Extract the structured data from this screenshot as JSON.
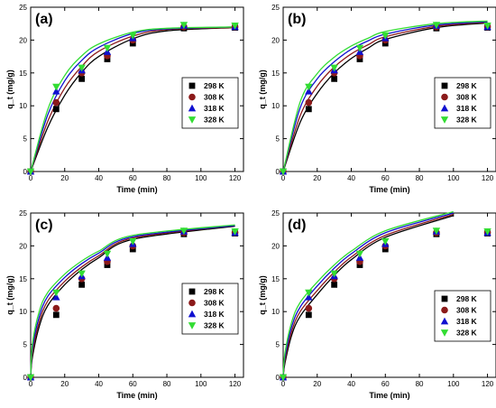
{
  "colors": {
    "298 K": "#000000",
    "308 K": "#8b1a1a",
    "318 K": "#1010d0",
    "328 K": "#33dd33"
  },
  "markers": {
    "298 K": "square",
    "308 K": "circle",
    "318 K": "triangle-up",
    "328 K": "triangle-down"
  },
  "chart_data": [
    {
      "panel_label": "(a)",
      "type": "scatter",
      "xlabel": "Time (min)",
      "ylabel": "q_t (mg/g)",
      "xlim": [
        0,
        125
      ],
      "ylim": [
        0,
        25
      ],
      "xticks": [
        0,
        20,
        40,
        60,
        80,
        100,
        120
      ],
      "yticks": [
        0,
        5,
        10,
        15,
        20,
        25
      ],
      "legend": [
        "298 K",
        "308 K",
        "318 K",
        "328 K"
      ],
      "legend_position": "center-right",
      "series": [
        {
          "name": "298 K",
          "x": [
            0,
            15,
            30,
            45,
            60,
            90,
            120
          ],
          "y": [
            0,
            9.5,
            14.1,
            17.1,
            19.5,
            21.8,
            21.9
          ],
          "fit": [
            0,
            6.7,
            11.6,
            15.1,
            17.5,
            20.2,
            21.4,
            21.9
          ]
        },
        {
          "name": "308 K",
          "x": [
            0,
            15,
            30,
            45,
            60,
            90,
            120
          ],
          "y": [
            0,
            10.5,
            15.0,
            17.6,
            20.0,
            22.0,
            22.0
          ],
          "fit": [
            0,
            7.6,
            12.7,
            16.0,
            18.3,
            20.6,
            21.6,
            21.9
          ]
        },
        {
          "name": "318 K",
          "x": [
            0,
            15,
            30,
            45,
            60,
            90,
            120
          ],
          "y": [
            0,
            12.2,
            15.4,
            18.2,
            20.3,
            22.2,
            22.0
          ],
          "fit": [
            0,
            8.6,
            13.8,
            16.9,
            18.9,
            21.0,
            21.7,
            22.0
          ]
        },
        {
          "name": "328 K",
          "x": [
            0,
            15,
            30,
            45,
            60,
            90,
            120
          ],
          "y": [
            0,
            12.9,
            15.8,
            18.8,
            20.7,
            22.3,
            22.2
          ],
          "fit": [
            0,
            9.4,
            14.6,
            17.6,
            19.4,
            21.2,
            21.8,
            22.0
          ]
        }
      ],
      "fit_x": [
        0,
        10,
        20,
        30,
        40,
        60,
        80,
        120
      ]
    },
    {
      "panel_label": "(b)",
      "type": "scatter",
      "xlabel": "Time (min)",
      "ylabel": "q_t (mg/g)",
      "xlim": [
        0,
        125
      ],
      "ylim": [
        0,
        25
      ],
      "xticks": [
        0,
        20,
        40,
        60,
        80,
        100,
        120
      ],
      "yticks": [
        0,
        5,
        10,
        15,
        20,
        25
      ],
      "legend": [
        "298 K",
        "308 K",
        "318 K",
        "328 K"
      ],
      "legend_position": "center-right",
      "series": [
        {
          "name": "298 K",
          "x": [
            0,
            15,
            30,
            45,
            60,
            90,
            120
          ],
          "y": [
            0,
            9.5,
            14.1,
            17.1,
            19.5,
            21.8,
            21.9
          ],
          "fit": [
            0,
            7.5,
            11.9,
            15.0,
            17.2,
            18.8,
            20.1,
            21.9,
            22.6
          ]
        },
        {
          "name": "308 K",
          "x": [
            0,
            15,
            30,
            45,
            60,
            90,
            120
          ],
          "y": [
            0,
            10.5,
            15.0,
            17.6,
            20.0,
            22.0,
            22.0
          ],
          "fit": [
            0,
            8.5,
            13.0,
            15.9,
            17.9,
            19.3,
            20.5,
            22.1,
            22.7
          ]
        },
        {
          "name": "318 K",
          "x": [
            0,
            15,
            30,
            45,
            60,
            90,
            120
          ],
          "y": [
            0,
            12.2,
            15.4,
            18.2,
            20.3,
            22.2,
            22.0
          ],
          "fit": [
            0,
            9.7,
            14.1,
            16.7,
            18.6,
            19.9,
            20.9,
            22.3,
            22.8
          ]
        },
        {
          "name": "328 K",
          "x": [
            0,
            15,
            30,
            45,
            60,
            90,
            120
          ],
          "y": [
            0,
            12.9,
            15.8,
            18.8,
            20.7,
            22.3,
            22.2
          ],
          "fit": [
            0,
            10.6,
            14.9,
            17.4,
            19.1,
            20.3,
            21.3,
            22.5,
            22.9
          ]
        }
      ],
      "fit_x": [
        0,
        10,
        20,
        30,
        40,
        50,
        60,
        90,
        120
      ]
    },
    {
      "panel_label": "(c)",
      "type": "scatter",
      "xlabel": "Time (min)",
      "ylabel": "q_t (mg/g)",
      "xlim": [
        0,
        125
      ],
      "ylim": [
        0,
        25
      ],
      "xticks": [
        0,
        20,
        40,
        60,
        80,
        100,
        120
      ],
      "yticks": [
        0,
        5,
        10,
        15,
        20,
        25
      ],
      "legend": [
        "298 K",
        "308 K",
        "318 K",
        "328 K"
      ],
      "legend_position": "center-right",
      "series": [
        {
          "name": "298 K",
          "x": [
            0,
            15,
            30,
            45,
            60,
            90,
            120
          ],
          "y": [
            0,
            9.5,
            14.1,
            17.1,
            19.5,
            21.8,
            21.9
          ],
          "fit": [
            0,
            3.0,
            7.7,
            10.9,
            14.1,
            16.4,
            18.2,
            21.0,
            23.0
          ]
        },
        {
          "name": "308 K",
          "x": [
            0,
            15,
            30,
            45,
            60,
            90,
            120
          ],
          "y": [
            0,
            10.5,
            15.0,
            17.6,
            20.0,
            22.0,
            22.0
          ],
          "fit": [
            0,
            3.6,
            8.4,
            11.6,
            14.6,
            16.8,
            18.5,
            21.2,
            23.1
          ]
        },
        {
          "name": "318 K",
          "x": [
            0,
            15,
            30,
            45,
            60,
            90,
            120
          ],
          "y": [
            0,
            12.2,
            15.4,
            18.2,
            20.3,
            22.2,
            22.0
          ],
          "fit": [
            0,
            4.3,
            9.2,
            12.3,
            15.2,
            17.3,
            18.9,
            21.4,
            23.1
          ]
        },
        {
          "name": "328 K",
          "x": [
            0,
            15,
            30,
            45,
            60,
            90,
            120
          ],
          "y": [
            0,
            12.9,
            15.8,
            18.8,
            20.7,
            22.3,
            22.2
          ],
          "fit": [
            0,
            5.0,
            10.0,
            12.9,
            15.7,
            17.7,
            19.2,
            21.6,
            23.2
          ]
        }
      ],
      "fit_x": [
        0,
        1,
        5,
        10,
        20,
        30,
        40,
        60,
        120
      ]
    },
    {
      "panel_label": "(d)",
      "type": "scatter",
      "xlabel": "Time (min)",
      "ylabel": "q_t (mg/g)",
      "xlim": [
        0,
        125
      ],
      "ylim": [
        0,
        25
      ],
      "xticks": [
        0,
        20,
        40,
        60,
        80,
        100,
        120
      ],
      "yticks": [
        0,
        5,
        10,
        15,
        20,
        25
      ],
      "legend": [
        "298 K",
        "308 K",
        "318 K",
        "328 K"
      ],
      "legend_position": "bottom-right",
      "series": [
        {
          "name": "298 K",
          "x": [
            0,
            15,
            30,
            45,
            60,
            90,
            120
          ],
          "y": [
            0,
            9.5,
            14.1,
            17.1,
            19.5,
            21.8,
            21.9
          ],
          "fit": [
            0,
            2.1,
            6.4,
            9.3,
            12.6,
            15.5,
            17.9,
            21.3,
            24.6
          ]
        },
        {
          "name": "308 K",
          "x": [
            0,
            15,
            30,
            45,
            60,
            90,
            120
          ],
          "y": [
            0,
            10.5,
            15.0,
            17.6,
            20.0,
            22.0,
            22.0
          ],
          "fit": [
            0,
            2.5,
            7.0,
            10.0,
            13.2,
            16.0,
            18.3,
            21.6,
            24.8
          ]
        },
        {
          "name": "318 K",
          "x": [
            0,
            15,
            30,
            45,
            60,
            90,
            120
          ],
          "y": [
            0,
            12.2,
            15.4,
            18.2,
            20.3,
            22.2,
            22.0
          ],
          "fit": [
            0,
            3.0,
            7.7,
            10.7,
            13.9,
            16.6,
            18.8,
            22.0,
            25.0
          ]
        },
        {
          "name": "328 K",
          "x": [
            0,
            15,
            30,
            45,
            60,
            90,
            120
          ],
          "y": [
            0,
            12.9,
            15.8,
            18.8,
            20.7,
            22.3,
            22.2
          ],
          "fit": [
            0,
            3.6,
            8.4,
            11.4,
            14.5,
            17.1,
            19.2,
            22.3,
            25.2
          ]
        }
      ],
      "fit_x": [
        0,
        1,
        5,
        10,
        20,
        30,
        40,
        60,
        100
      ]
    }
  ]
}
